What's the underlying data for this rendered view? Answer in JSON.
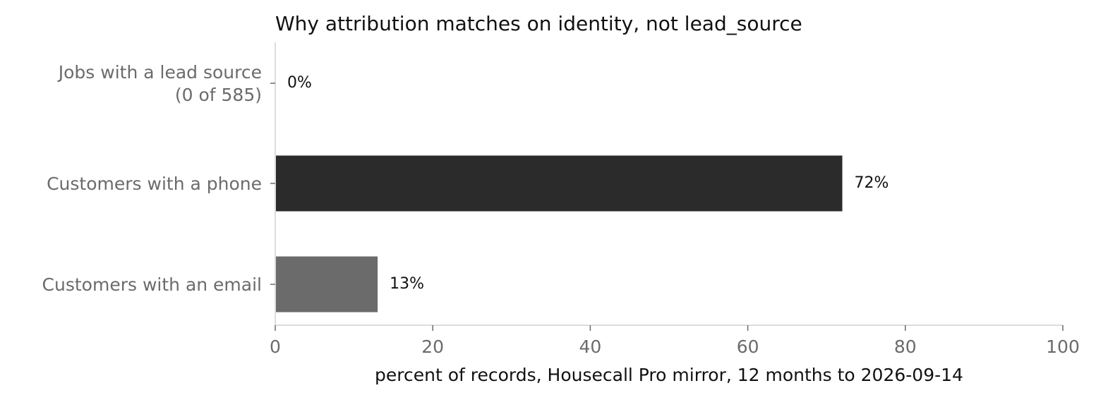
{
  "chart_data": {
    "type": "bar",
    "orientation": "horizontal",
    "title": "Why attribution matches on identity, not lead_source",
    "xlabel": "percent of records, Housecall Pro mirror, 12 months to 2026-09-14",
    "ylabel": "",
    "xlim": [
      0,
      100
    ],
    "xticks": [
      "0",
      "20",
      "40",
      "60",
      "80",
      "100"
    ],
    "grid": false,
    "categories": [
      [
        "Jobs with a lead source",
        "(0 of 585)"
      ],
      [
        "Customers with a phone"
      ],
      [
        "Customers with an email"
      ]
    ],
    "values": [
      0,
      72,
      13
    ],
    "data_labels": [
      "0%",
      "72%",
      "13%"
    ],
    "colors": [
      "#2b2b2b",
      "#2b2b2b",
      "#6b6b6b"
    ]
  }
}
